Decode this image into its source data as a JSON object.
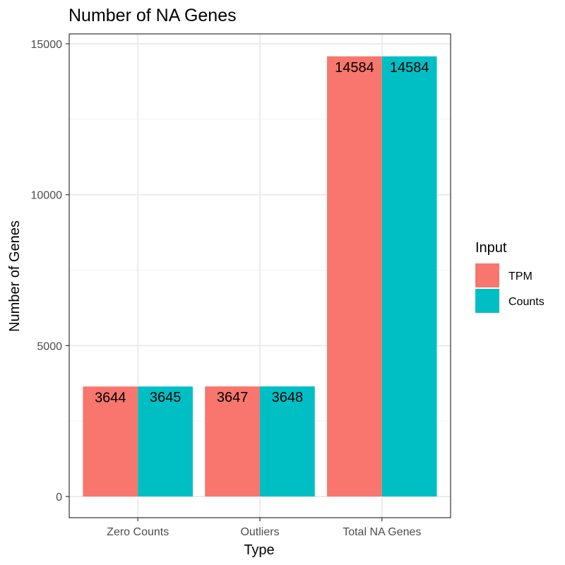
{
  "chart_data": {
    "type": "bar",
    "title": "Number of NA Genes",
    "xlabel": "Type",
    "ylabel": "Number of Genes",
    "categories": [
      "Zero Counts",
      "Outliers",
      "Total NA Genes"
    ],
    "series": [
      {
        "name": "TPM",
        "color": "#F8766D",
        "values": [
          3644,
          3647,
          14584
        ]
      },
      {
        "name": "Counts",
        "color": "#00BFC4",
        "values": [
          3645,
          3648,
          14584
        ]
      }
    ],
    "ylim": [
      -700,
      15400
    ],
    "yticks": [
      0,
      5000,
      10000,
      15000
    ],
    "ytick_labels": [
      "0",
      "5000",
      "10000",
      "15000"
    ],
    "grid": true,
    "legend": {
      "title": "Input",
      "position": "right"
    }
  }
}
